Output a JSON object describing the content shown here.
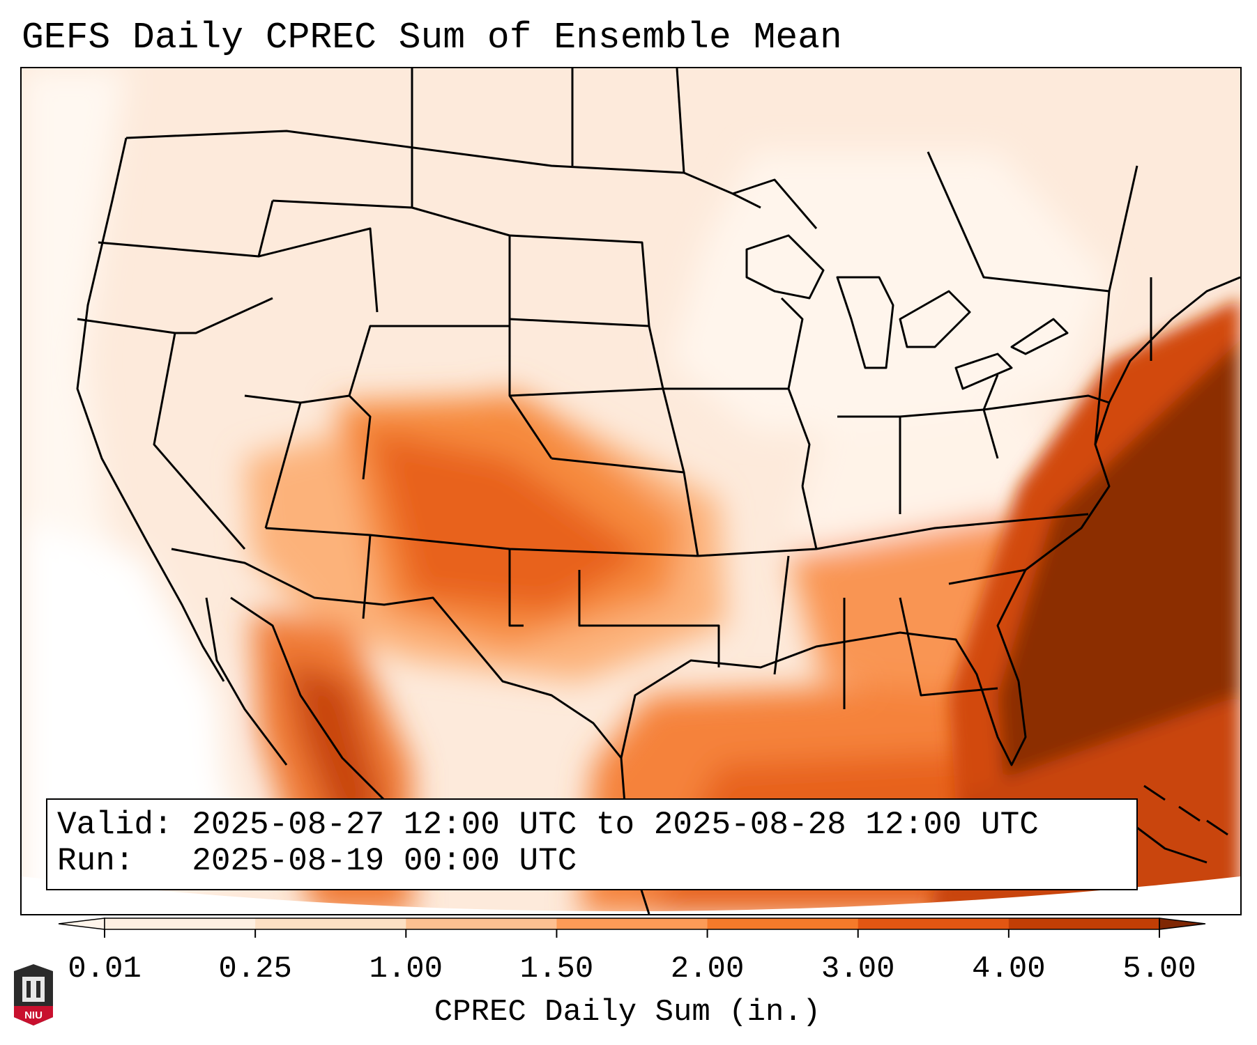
{
  "title": "GEFS Daily CPREC Sum of Ensemble Mean",
  "info": {
    "valid_line": "Valid: 2025-08-27 12:00 UTC to 2025-08-28 12:00 UTC",
    "run_line": "Run:   2025-08-19 00:00 UTC"
  },
  "colorbar": {
    "label": "CPREC Daily Sum (in.)",
    "ticks": [
      "0.01",
      "0.25",
      "1.00",
      "1.50",
      "2.00",
      "3.00",
      "4.00",
      "5.00"
    ],
    "colors": [
      "#fef0e2",
      "#fde0c4",
      "#fdc091",
      "#fc9b57",
      "#f57a2a",
      "#e35612",
      "#c23e05",
      "#8c2d04"
    ],
    "under_color": "#fff5eb",
    "over_color": "#7f2704"
  },
  "logo": {
    "text": "NIU"
  }
}
